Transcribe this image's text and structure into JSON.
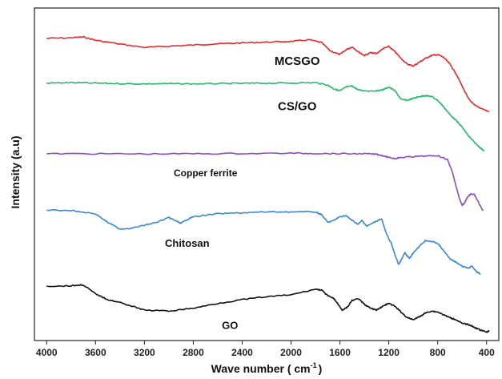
{
  "chart_data": {
    "type": "line",
    "title": "",
    "xlabel": "Wave number ( cm",
    "xlabel_sup": "-1",
    "xlabel_end": ")",
    "ylabel": "Intensity (a.u)",
    "xlim": [
      4100,
      300
    ],
    "x_reversed": true,
    "yticks_shown": false,
    "grid": false,
    "legend": "none",
    "xticks": [
      4000,
      3600,
      3200,
      2800,
      2400,
      2000,
      1600,
      1200,
      800,
      400
    ],
    "series": [
      {
        "name": "MCSGO",
        "color": "#e8282b",
        "label_x": 1950,
        "points": [
          [
            4000,
            0.15
          ],
          [
            3800,
            0.145
          ],
          [
            3700,
            0.135
          ],
          [
            3600,
            0.17
          ],
          [
            3400,
            0.21
          ],
          [
            3200,
            0.245
          ],
          [
            3000,
            0.232
          ],
          [
            2800,
            0.22
          ],
          [
            2600,
            0.207
          ],
          [
            2400,
            0.198
          ],
          [
            2200,
            0.19
          ],
          [
            2000,
            0.182
          ],
          [
            1850,
            0.165
          ],
          [
            1750,
            0.195
          ],
          [
            1680,
            0.28
          ],
          [
            1600,
            0.32
          ],
          [
            1550,
            0.27
          ],
          [
            1500,
            0.24
          ],
          [
            1450,
            0.29
          ],
          [
            1400,
            0.33
          ],
          [
            1350,
            0.3
          ],
          [
            1300,
            0.31
          ],
          [
            1250,
            0.26
          ],
          [
            1200,
            0.235
          ],
          [
            1150,
            0.29
          ],
          [
            1100,
            0.36
          ],
          [
            1050,
            0.42
          ],
          [
            1000,
            0.44
          ],
          [
            950,
            0.4
          ],
          [
            900,
            0.36
          ],
          [
            850,
            0.33
          ],
          [
            800,
            0.32
          ],
          [
            750,
            0.35
          ],
          [
            700,
            0.42
          ],
          [
            650,
            0.52
          ],
          [
            600,
            0.65
          ],
          [
            550,
            0.78
          ],
          [
            500,
            0.85
          ],
          [
            450,
            0.88
          ],
          [
            380,
            0.92
          ]
        ]
      },
      {
        "name": "CS/GO",
        "color": "#25b86b",
        "label_x": 1950,
        "points": [
          [
            4000,
            0.62
          ],
          [
            3800,
            0.615
          ],
          [
            3600,
            0.62
          ],
          [
            3400,
            0.625
          ],
          [
            3200,
            0.628
          ],
          [
            3000,
            0.625
          ],
          [
            2800,
            0.628
          ],
          [
            2600,
            0.625
          ],
          [
            2400,
            0.622
          ],
          [
            2200,
            0.62
          ],
          [
            2000,
            0.618
          ],
          [
            1800,
            0.615
          ],
          [
            1700,
            0.64
          ],
          [
            1650,
            0.68
          ],
          [
            1600,
            0.7
          ],
          [
            1550,
            0.66
          ],
          [
            1500,
            0.65
          ],
          [
            1450,
            0.69
          ],
          [
            1400,
            0.7
          ],
          [
            1300,
            0.7
          ],
          [
            1250,
            0.69
          ],
          [
            1200,
            0.66
          ],
          [
            1150,
            0.7
          ],
          [
            1100,
            0.79
          ],
          [
            1050,
            0.8
          ],
          [
            1000,
            0.78
          ],
          [
            950,
            0.76
          ],
          [
            900,
            0.75
          ],
          [
            850,
            0.76
          ],
          [
            800,
            0.8
          ],
          [
            750,
            0.87
          ],
          [
            700,
            0.95
          ],
          [
            650,
            1.01
          ],
          [
            600,
            1.08
          ],
          [
            550,
            1.17
          ],
          [
            500,
            1.24
          ],
          [
            450,
            1.3
          ],
          [
            420,
            1.33
          ]
        ]
      },
      {
        "name": "Copper ferrite",
        "color": "#8a4fbf",
        "label_x": 2700,
        "points": [
          [
            4000,
            1.36
          ],
          [
            3600,
            1.36
          ],
          [
            3200,
            1.362
          ],
          [
            2800,
            1.36
          ],
          [
            2400,
            1.358
          ],
          [
            2000,
            1.355
          ],
          [
            1800,
            1.357
          ],
          [
            1600,
            1.36
          ],
          [
            1400,
            1.36
          ],
          [
            1300,
            1.365
          ],
          [
            1250,
            1.38
          ],
          [
            1200,
            1.4
          ],
          [
            1150,
            1.41
          ],
          [
            1100,
            1.4
          ],
          [
            1000,
            1.39
          ],
          [
            900,
            1.385
          ],
          [
            800,
            1.38
          ],
          [
            720,
            1.42
          ],
          [
            680,
            1.55
          ],
          [
            650,
            1.7
          ],
          [
            620,
            1.84
          ],
          [
            600,
            1.9
          ],
          [
            580,
            1.88
          ],
          [
            560,
            1.82
          ],
          [
            530,
            1.78
          ],
          [
            500,
            1.79
          ],
          [
            470,
            1.86
          ],
          [
            430,
            1.96
          ]
        ]
      },
      {
        "name": "Chitosan",
        "color": "#3d89cf",
        "label_x": 2850,
        "points": [
          [
            4000,
            1.95
          ],
          [
            3800,
            1.955
          ],
          [
            3600,
            1.99
          ],
          [
            3500,
            2.08
          ],
          [
            3400,
            2.15
          ],
          [
            3300,
            2.14
          ],
          [
            3200,
            2.11
          ],
          [
            3100,
            2.08
          ],
          [
            3000,
            2.03
          ],
          [
            2950,
            2.06
          ],
          [
            2900,
            2.09
          ],
          [
            2850,
            2.05
          ],
          [
            2800,
            2.02
          ],
          [
            2600,
            1.99
          ],
          [
            2400,
            1.98
          ],
          [
            2200,
            1.97
          ],
          [
            2000,
            1.97
          ],
          [
            1800,
            1.97
          ],
          [
            1750,
            2.0
          ],
          [
            1700,
            2.08
          ],
          [
            1650,
            2.06
          ],
          [
            1600,
            2.02
          ],
          [
            1550,
            2.01
          ],
          [
            1500,
            2.06
          ],
          [
            1450,
            2.1
          ],
          [
            1420,
            2.06
          ],
          [
            1380,
            2.12
          ],
          [
            1320,
            2.08
          ],
          [
            1260,
            2.04
          ],
          [
            1220,
            2.2
          ],
          [
            1180,
            2.3
          ],
          [
            1150,
            2.42
          ],
          [
            1120,
            2.52
          ],
          [
            1100,
            2.48
          ],
          [
            1070,
            2.4
          ],
          [
            1030,
            2.46
          ],
          [
            1000,
            2.4
          ],
          [
            950,
            2.33
          ],
          [
            900,
            2.27
          ],
          [
            850,
            2.28
          ],
          [
            800,
            2.3
          ],
          [
            750,
            2.38
          ],
          [
            700,
            2.46
          ],
          [
            650,
            2.5
          ],
          [
            600,
            2.54
          ],
          [
            550,
            2.56
          ],
          [
            520,
            2.54
          ],
          [
            480,
            2.6
          ],
          [
            450,
            2.62
          ]
        ]
      },
      {
        "name": "GO",
        "color": "#111111",
        "label_x": 2500,
        "points": [
          [
            4000,
            2.75
          ],
          [
            3800,
            2.745
          ],
          [
            3700,
            2.735
          ],
          [
            3600,
            2.83
          ],
          [
            3500,
            2.89
          ],
          [
            3400,
            2.92
          ],
          [
            3300,
            2.96
          ],
          [
            3200,
            3.0
          ],
          [
            3000,
            3.01
          ],
          [
            2800,
            2.98
          ],
          [
            2600,
            2.93
          ],
          [
            2400,
            2.89
          ],
          [
            2200,
            2.86
          ],
          [
            2000,
            2.84
          ],
          [
            1800,
            2.78
          ],
          [
            1750,
            2.79
          ],
          [
            1700,
            2.85
          ],
          [
            1650,
            2.88
          ],
          [
            1620,
            2.93
          ],
          [
            1580,
            3.0
          ],
          [
            1540,
            2.97
          ],
          [
            1500,
            2.9
          ],
          [
            1450,
            2.88
          ],
          [
            1400,
            2.94
          ],
          [
            1350,
            2.98
          ],
          [
            1300,
            3.0
          ],
          [
            1250,
            2.96
          ],
          [
            1200,
            2.93
          ],
          [
            1150,
            2.96
          ],
          [
            1100,
            3.02
          ],
          [
            1050,
            3.08
          ],
          [
            1000,
            3.1
          ],
          [
            950,
            3.07
          ],
          [
            900,
            3.03
          ],
          [
            850,
            3.01
          ],
          [
            800,
            3.02
          ],
          [
            750,
            3.05
          ],
          [
            700,
            3.08
          ],
          [
            650,
            3.1
          ],
          [
            600,
            3.14
          ],
          [
            550,
            3.15
          ],
          [
            500,
            3.18
          ],
          [
            450,
            3.21
          ],
          [
            400,
            3.23
          ],
          [
            380,
            3.22
          ]
        ]
      }
    ]
  }
}
